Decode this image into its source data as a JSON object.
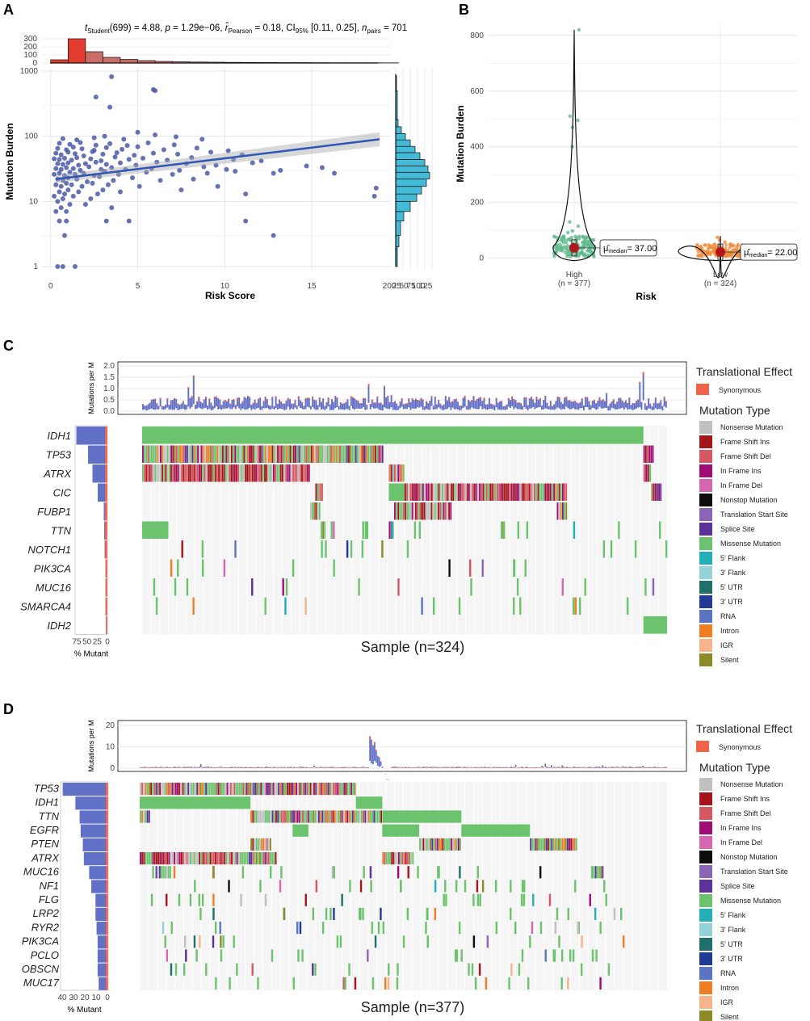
{
  "panels": {
    "a": "A",
    "b": "B",
    "c": "C",
    "d": "D"
  },
  "chart_data": [
    {
      "type": "scatter",
      "panel": "A",
      "subtitle_parts": {
        "t": "t",
        "t_sub": "Student",
        "t_val": "(699) = 4.88, ",
        "p": "p",
        "p_val": " = 1.29e−06, ",
        "r": "r̂",
        "r_sub": "Pearson",
        "r_val": " = 0.18, CI",
        "ci_sub": "95%",
        "ci_val": " [0.11, 0.25], ",
        "n": "n",
        "n_sub": "pairs",
        "n_val": " = 701"
      },
      "xlabel": "Risk Score",
      "ylabel": "Mutation Burden",
      "xlim": [
        -0.5,
        19.5
      ],
      "ylim_log10": [
        -0.05,
        3.05
      ],
      "x_ticks": [
        0,
        5,
        10,
        15
      ],
      "y_ticks": [
        1,
        10,
        100,
        1000
      ],
      "y_tick_labels": [
        "1",
        "10",
        "100",
        "1000"
      ],
      "regression": {
        "x0": 0.3,
        "y0": 22,
        "x1": 18.9,
        "y1": 90
      },
      "points": [
        [
          0.4,
          1
        ],
        [
          0.7,
          1
        ],
        [
          1.4,
          1
        ],
        [
          0.8,
          3
        ],
        [
          12.8,
          3
        ],
        [
          0.5,
          5
        ],
        [
          0.9,
          5
        ],
        [
          3.2,
          5
        ],
        [
          4.5,
          5
        ],
        [
          11.2,
          5
        ],
        [
          0.3,
          7
        ],
        [
          0.6,
          8
        ],
        [
          0.9,
          7
        ],
        [
          1.1,
          9
        ],
        [
          2.0,
          9
        ],
        [
          3.5,
          8
        ],
        [
          0.4,
          10
        ],
        [
          0.7,
          11
        ],
        [
          1.3,
          12
        ],
        [
          2.3,
          11
        ],
        [
          0.2,
          12
        ],
        [
          0.5,
          14
        ],
        [
          0.8,
          13
        ],
        [
          1.0,
          15
        ],
        [
          1.6,
          14
        ],
        [
          2.7,
          13
        ],
        [
          3.0,
          15
        ],
        [
          4.0,
          14
        ],
        [
          11.2,
          13
        ],
        [
          18.6,
          12
        ],
        [
          0.3,
          18
        ],
        [
          0.6,
          17
        ],
        [
          0.9,
          19
        ],
        [
          1.2,
          18
        ],
        [
          1.8,
          17
        ],
        [
          2.4,
          19
        ],
        [
          3.3,
          18
        ],
        [
          5.1,
          17
        ],
        [
          7.5,
          15
        ],
        [
          9.6,
          17
        ],
        [
          0.4,
          22
        ],
        [
          0.7,
          21
        ],
        [
          1.0,
          23
        ],
        [
          1.5,
          22
        ],
        [
          2.1,
          20
        ],
        [
          2.8,
          24
        ],
        [
          3.6,
          21
        ],
        [
          4.7,
          23
        ],
        [
          6.3,
          21
        ],
        [
          8.2,
          22
        ],
        [
          0.2,
          26
        ],
        [
          0.5,
          27
        ],
        [
          0.8,
          25
        ],
        [
          1.1,
          28
        ],
        [
          1.4,
          26
        ],
        [
          1.9,
          27
        ],
        [
          2.5,
          25
        ],
        [
          3.1,
          29
        ],
        [
          3.9,
          26
        ],
        [
          5.5,
          28
        ],
        [
          7.0,
          26
        ],
        [
          9.0,
          27
        ],
        [
          10.6,
          29
        ],
        [
          12.8,
          27
        ],
        [
          16.3,
          27
        ],
        [
          18.7,
          16
        ],
        [
          0.3,
          32
        ],
        [
          0.6,
          31
        ],
        [
          0.9,
          33
        ],
        [
          1.3,
          32
        ],
        [
          1.7,
          30
        ],
        [
          2.2,
          34
        ],
        [
          2.9,
          31
        ],
        [
          3.5,
          33
        ],
        [
          4.3,
          31
        ],
        [
          5.8,
          32
        ],
        [
          7.4,
          30
        ],
        [
          8.8,
          34
        ],
        [
          10.1,
          31
        ],
        [
          13.2,
          30
        ],
        [
          0.4,
          38
        ],
        [
          0.7,
          37
        ],
        [
          1.0,
          39
        ],
        [
          1.6,
          36
        ],
        [
          2.0,
          38
        ],
        [
          2.6,
          40
        ],
        [
          3.2,
          37
        ],
        [
          4.0,
          39
        ],
        [
          4.9,
          36
        ],
        [
          6.1,
          40
        ],
        [
          7.8,
          38
        ],
        [
          9.5,
          36
        ],
        [
          11.6,
          39
        ],
        [
          14.7,
          35
        ],
        [
          15.6,
          33
        ],
        [
          0.2,
          45
        ],
        [
          0.5,
          44
        ],
        [
          0.8,
          46
        ],
        [
          1.2,
          43
        ],
        [
          1.5,
          47
        ],
        [
          2.3,
          45
        ],
        [
          2.9,
          42
        ],
        [
          3.7,
          48
        ],
        [
          4.5,
          44
        ],
        [
          5.3,
          46
        ],
        [
          6.7,
          43
        ],
        [
          8.1,
          47
        ],
        [
          10.5,
          44
        ],
        [
          12.1,
          42
        ],
        [
          0.3,
          55
        ],
        [
          0.6,
          52
        ],
        [
          1.0,
          57
        ],
        [
          1.4,
          54
        ],
        [
          1.9,
          50
        ],
        [
          2.4,
          58
        ],
        [
          3.0,
          53
        ],
        [
          3.8,
          56
        ],
        [
          4.8,
          51
        ],
        [
          5.9,
          55
        ],
        [
          7.3,
          53
        ],
        [
          9.2,
          57
        ],
        [
          11.0,
          52
        ],
        [
          0.4,
          65
        ],
        [
          0.9,
          62
        ],
        [
          1.3,
          68
        ],
        [
          1.8,
          64
        ],
        [
          2.5,
          61
        ],
        [
          3.2,
          67
        ],
        [
          4.1,
          63
        ],
        [
          5.0,
          69
        ],
        [
          6.5,
          62
        ],
        [
          8.4,
          66
        ],
        [
          10.2,
          60
        ],
        [
          0.5,
          78
        ],
        [
          1.1,
          75
        ],
        [
          1.7,
          80
        ],
        [
          2.6,
          73
        ],
        [
          3.4,
          77
        ],
        [
          4.4,
          72
        ],
        [
          5.6,
          79
        ],
        [
          7.1,
          74
        ],
        [
          0.7,
          92
        ],
        [
          1.5,
          88
        ],
        [
          2.5,
          95
        ],
        [
          3.1,
          100
        ],
        [
          4.2,
          90
        ],
        [
          5.0,
          115
        ],
        [
          6.0,
          105
        ],
        [
          7.2,
          98
        ],
        [
          8.7,
          90
        ],
        [
          2.6,
          400
        ],
        [
          3.4,
          280
        ],
        [
          5.9,
          520
        ],
        [
          6.0,
          500
        ],
        [
          3.5,
          820
        ]
      ],
      "top_hist": {
        "bins": [
          0,
          1,
          2,
          3,
          4,
          5,
          6,
          7,
          8,
          9,
          10,
          11,
          12,
          13,
          14,
          15,
          16,
          17,
          18,
          19
        ],
        "counts": [
          40,
          300,
          140,
          70,
          45,
          30,
          20,
          15,
          12,
          10,
          8,
          7,
          6,
          5,
          5,
          4,
          3,
          3,
          3,
          2
        ],
        "tick_labels": [
          "0",
          "100",
          "200",
          "300"
        ]
      },
      "right_hist": {
        "tick_labels": [
          "200",
          "25",
          "50",
          "75",
          "100",
          "125"
        ]
      }
    },
    {
      "type": "violin",
      "panel": "B",
      "xlabel": "Risk",
      "ylabel": "Mutation Burden",
      "ylim": [
        -30,
        840
      ],
      "y_ticks": [
        0,
        200,
        400,
        600,
        800
      ],
      "groups": [
        {
          "name": "High",
          "n": "(n = 377)",
          "median": 37,
          "median_label": "= 37.00",
          "outliers": [
            820,
            510,
            495,
            470,
            400,
            130,
            115,
            98,
            92
          ]
        },
        {
          "name": "Low",
          "n": "(n = 324)",
          "median": 22,
          "median_label": "= 22.00",
          "outliers": [
            75,
            65,
            58
          ]
        }
      ],
      "mu_symbol": "μ̂",
      "mu_sub": "median"
    },
    {
      "type": "oncoplot",
      "panel": "C",
      "top_ylabel": "Mutations per M",
      "top_ticks": [
        "0.0",
        "0.5",
        "1.0",
        "1.5",
        "2.0"
      ],
      "genes": [
        "IDH1",
        "TP53",
        "ATRX",
        "CIC",
        "FUBP1",
        "TTN",
        "NOTCH1",
        "PIK3CA",
        "MUC16",
        "SMARCA4",
        "IDH2"
      ],
      "percent_mutant": [
        77,
        48,
        37,
        24,
        9,
        8,
        7,
        5,
        5,
        5,
        4
      ],
      "pct_ticks": [
        "75",
        "50",
        "25",
        "0"
      ],
      "pct_label": "% Mutant",
      "sample_label": "Sample (n=324)"
    },
    {
      "type": "oncoplot",
      "panel": "D",
      "top_ylabel": "Mutations per M",
      "top_ticks": [
        "0",
        "10",
        "20"
      ],
      "genes": [
        "TP53",
        "IDH1",
        "TTN",
        "EGFR",
        "PTEN",
        "ATRX",
        "MUC16",
        "NF1",
        "FLG",
        "LRP2",
        "RYR2",
        "PIK3CA",
        "PCLO",
        "OBSCN",
        "MUC17"
      ],
      "percent_mutant": [
        43,
        31,
        27,
        26,
        24,
        23,
        18,
        16,
        12,
        12,
        11,
        10,
        10,
        10,
        9
      ],
      "pct_ticks": [
        "40",
        "30",
        "20",
        "10",
        "0"
      ],
      "pct_label": "% Mutant",
      "sample_label": "Sample (n=377)"
    }
  ],
  "legend": {
    "effect_title": "Translational Effect",
    "effect_items": [
      {
        "label": "Synonymous",
        "color": "#f0634a"
      }
    ],
    "type_title": "Mutation Type",
    "type_items": [
      {
        "label": "Nonsense Mutation",
        "color": "#c0c0c0"
      },
      {
        "label": "Frame Shift Ins",
        "color": "#a4161a"
      },
      {
        "label": "Frame Shift Del",
        "color": "#d45762"
      },
      {
        "label": "In Frame Ins",
        "color": "#a00b75"
      },
      {
        "label": "In Frame Del",
        "color": "#d566b0"
      },
      {
        "label": "Nonstop Mutation",
        "color": "#0d0d0d"
      },
      {
        "label": "Translation Start Site",
        "color": "#8a64b5"
      },
      {
        "label": "Splice Site",
        "color": "#5a329a"
      },
      {
        "label": "Missense Mutation",
        "color": "#6cc36d"
      },
      {
        "label": "5' Flank",
        "color": "#22b0b6"
      },
      {
        "label": "3' Flank",
        "color": "#94d2da"
      },
      {
        "label": "5' UTR",
        "color": "#1f6f6a"
      },
      {
        "label": "3' UTR",
        "color": "#213a95"
      },
      {
        "label": "RNA",
        "color": "#5b74c4"
      },
      {
        "label": "Intron",
        "color": "#ef7d22"
      },
      {
        "label": "IGR",
        "color": "#f5b48a"
      },
      {
        "label": "Silent",
        "color": "#8b8a26"
      }
    ]
  },
  "colors": {
    "scatter_point": "#4a5aa8",
    "regression": "#2f55b5",
    "hist_top": "#e23c31",
    "hist_right": "#45bad6",
    "tmb_bar": "#6271c8",
    "tmb_syn": "#f0634a",
    "violin_high": "#5fba8c",
    "violin_low": "#f08a3a",
    "median_dot": "#b0161c"
  }
}
